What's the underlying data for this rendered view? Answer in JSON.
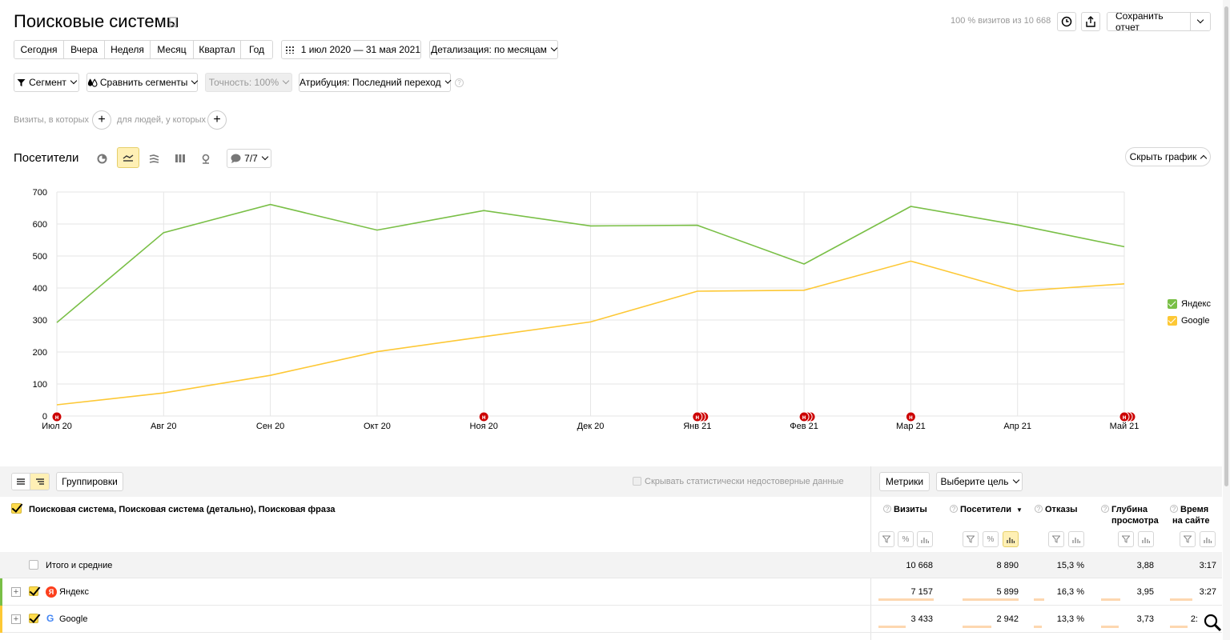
{
  "header": {
    "title": "Поисковые системы",
    "visits_summary": "100 % визитов из 10 668",
    "save_report": "Сохранить отчет"
  },
  "period_buttons": [
    "Сегодня",
    "Вчера",
    "Неделя",
    "Месяц",
    "Квартал",
    "Год"
  ],
  "date_range": "1 июл 2020 — 31 мая 2021",
  "detail": "Детализация: по месяцам",
  "filters": {
    "segment": "Сегмент",
    "compare": "Сравнить сегменты",
    "accuracy": "Точность: 100%",
    "attribution": "Атрибуция: Последний переход"
  },
  "conditions": {
    "visits_label": "Визиты, в которых",
    "people_label": "для людей, у которых"
  },
  "chart_header": {
    "title": "Посетители",
    "notes_count": "7/7",
    "hide_chart": "Скрыть график"
  },
  "chart_data": {
    "type": "line",
    "categories": [
      "Июл 20",
      "Авг 20",
      "Сен 20",
      "Окт 20",
      "Ноя 20",
      "Дек 20",
      "Янв 21",
      "Фев 21",
      "Мар 21",
      "Апр 21",
      "Май 21"
    ],
    "yticks": [
      "0",
      "100",
      "200",
      "300",
      "400",
      "500",
      "600",
      "700"
    ],
    "ylim": [
      0,
      700
    ],
    "series": [
      {
        "name": "Яндекс",
        "color": "#79bf46",
        "values": [
          292,
          573,
          661,
          581,
          642,
          594,
          596,
          475,
          655,
          597,
          529
        ]
      },
      {
        "name": "Google",
        "color": "#fdc835",
        "values": [
          35,
          72,
          127,
          201,
          248,
          294,
          390,
          393,
          484,
          390,
          413
        ]
      }
    ],
    "annotation_marker": "н",
    "annotations": [
      {
        "category_index": 0,
        "count": 1
      },
      {
        "category_index": 4,
        "count": 1
      },
      {
        "category_index": 6,
        "count": 3
      },
      {
        "category_index": 7,
        "count": 3
      },
      {
        "category_index": 8,
        "count": 1
      },
      {
        "category_index": 10,
        "count": 3
      }
    ],
    "grid": true,
    "legend_position": "right"
  },
  "table_toolbar": {
    "groupings": "Группировки",
    "hide_unreliable": "Скрывать статистически недостоверные данные",
    "metrics": "Метрики",
    "choose_goal": "Выберите цель"
  },
  "table": {
    "dimension_header": "Поисковая система, Поисковая система (детально), Поисковая фраза",
    "columns": [
      {
        "title": "Визиты",
        "title2": ""
      },
      {
        "title": "Посетители",
        "title2": "",
        "sort": "▼"
      },
      {
        "title": "Отказы",
        "title2": ""
      },
      {
        "title": "Глубина",
        "title2": "просмотра"
      },
      {
        "title": "Время",
        "title2": "на сайте"
      }
    ],
    "totals": {
      "label": "Итого и средние",
      "values": [
        "10 668",
        "8 890",
        "15,3 %",
        "3,88",
        "3:17"
      ]
    },
    "rows": [
      {
        "label": "Яндекс",
        "icon": "yandex-logo-icon",
        "values": [
          "7 157",
          "5 899",
          "16,3 %",
          "3,95",
          "3:27"
        ]
      },
      {
        "label": "Google",
        "icon": "google-logo-icon",
        "values": [
          "3 433",
          "2 942",
          "13,3 %",
          "3,73",
          "2:"
        ]
      }
    ]
  }
}
